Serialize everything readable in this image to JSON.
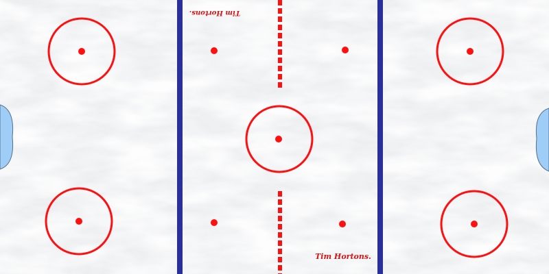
{
  "rink": {
    "ice_color": "#f1f2f4",
    "crack_color": "#ffffff",
    "red_color": "#ff1010",
    "blue_line_color": "#2a2f9a",
    "crease_color": "#9ecdf7",
    "crease_border": "#5a6f8a",
    "logo_color": "#d41414"
  },
  "logos": {
    "top": "Tim Hortons.",
    "bottom": "Tim Hortons."
  }
}
